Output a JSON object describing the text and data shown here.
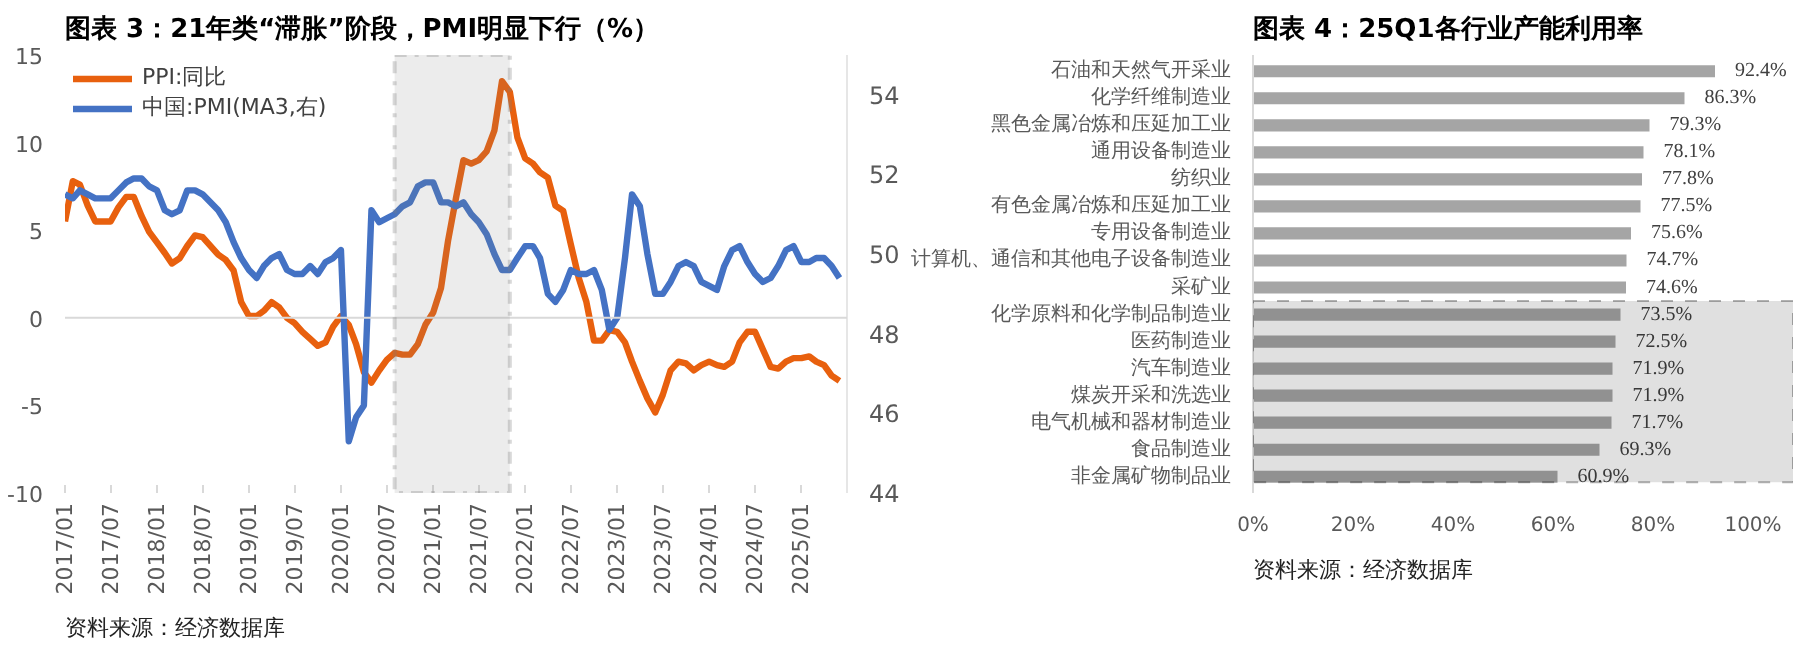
{
  "chart_data": [
    {
      "type": "line",
      "title": "图表 3：21年类“滞胀”阶段，PMI明显下行（%）",
      "annotations": [
        "资料来源：经济数据库"
      ],
      "x": [
        "2017-01",
        "2017-02",
        "2017-03",
        "2017-04",
        "2017-05",
        "2017-06",
        "2017-07",
        "2017-08",
        "2017-09",
        "2017-10",
        "2017-11",
        "2017-12",
        "2018-01",
        "2018-02",
        "2018-03",
        "2018-04",
        "2018-05",
        "2018-06",
        "2018-07",
        "2018-08",
        "2018-09",
        "2018-10",
        "2018-11",
        "2018-12",
        "2019-01",
        "2019-02",
        "2019-03",
        "2019-04",
        "2019-05",
        "2019-06",
        "2019-07",
        "2019-08",
        "2019-09",
        "2019-10",
        "2019-11",
        "2019-12",
        "2020-01",
        "2020-02",
        "2020-03",
        "2020-04",
        "2020-05",
        "2020-06",
        "2020-07",
        "2020-08",
        "2020-09",
        "2020-10",
        "2020-11",
        "2020-12",
        "2021-01",
        "2021-02",
        "2021-03",
        "2021-04",
        "2021-05",
        "2021-06",
        "2021-07",
        "2021-08",
        "2021-09",
        "2021-10",
        "2021-11",
        "2021-12",
        "2022-01",
        "2022-02",
        "2022-03",
        "2022-04",
        "2022-05",
        "2022-06",
        "2022-07",
        "2022-08",
        "2022-09",
        "2022-10",
        "2022-11",
        "2022-12",
        "2023-01",
        "2023-02",
        "2023-03",
        "2023-04",
        "2023-05",
        "2023-06",
        "2023-07",
        "2023-08",
        "2023-09",
        "2023-10",
        "2023-11",
        "2023-12",
        "2024-01",
        "2024-02",
        "2024-03",
        "2024-04",
        "2024-05",
        "2024-06",
        "2024-07",
        "2024-08",
        "2024-09",
        "2024-10",
        "2024-11",
        "2024-12",
        "2025-01",
        "2025-02",
        "2025-03",
        "2025-04",
        "2025-05",
        "2025-06"
      ],
      "series": [
        {
          "name": "PPI:同比",
          "color": "#e8600e",
          "values": [
            5.5,
            7.8,
            7.6,
            6.4,
            5.5,
            5.5,
            5.5,
            6.3,
            6.9,
            6.9,
            5.8,
            4.9,
            4.3,
            3.7,
            3.1,
            3.4,
            4.1,
            4.7,
            4.6,
            4.1,
            3.6,
            3.3,
            2.7,
            0.9,
            0.1,
            0.1,
            0.4,
            0.9,
            0.6,
            0.0,
            -0.3,
            -0.8,
            -1.2,
            -1.6,
            -1.4,
            -0.5,
            0.1,
            -0.4,
            -1.5,
            -3.1,
            -3.7,
            -3.0,
            -2.4,
            -2.0,
            -2.1,
            -2.1,
            -1.5,
            -0.4,
            0.3,
            1.7,
            4.4,
            6.8,
            9.0,
            8.8,
            9.0,
            9.5,
            10.7,
            13.5,
            12.9,
            10.3,
            9.1,
            8.8,
            8.3,
            8.0,
            6.4,
            6.1,
            4.2,
            2.3,
            0.9,
            -1.3,
            -1.3,
            -0.7,
            -0.8,
            -1.4,
            -2.5,
            -3.6,
            -4.6,
            -5.4,
            -4.4,
            -3.0,
            -2.5,
            -2.6,
            -3.0,
            -2.7,
            -2.5,
            -2.7,
            -2.8,
            -2.5,
            -1.4,
            -0.8,
            -0.8,
            -1.8,
            -2.8,
            -2.9,
            -2.5,
            -2.3,
            -2.3,
            -2.2,
            -2.5,
            -2.7,
            -3.3,
            -3.6
          ]
        },
        {
          "name": "中国:PMI(MA3,右)",
          "color": "#4472c4",
          "axis": "y2",
          "values": [
            51.5,
            51.4,
            51.6,
            51.5,
            51.4,
            51.4,
            51.4,
            51.6,
            51.8,
            51.9,
            51.9,
            51.7,
            51.6,
            51.1,
            51.0,
            51.1,
            51.6,
            51.6,
            51.5,
            51.3,
            51.1,
            50.8,
            50.3,
            49.9,
            49.6,
            49.4,
            49.7,
            49.9,
            50.0,
            49.6,
            49.5,
            49.5,
            49.7,
            49.5,
            49.8,
            49.9,
            50.1,
            45.3,
            45.9,
            46.2,
            51.1,
            50.8,
            50.9,
            51.0,
            51.2,
            51.3,
            51.7,
            51.8,
            51.8,
            51.3,
            51.3,
            51.2,
            51.3,
            51.0,
            50.8,
            50.5,
            50.0,
            49.6,
            49.6,
            49.9,
            50.2,
            50.2,
            49.9,
            49.0,
            48.8,
            49.1,
            49.6,
            49.5,
            49.5,
            49.6,
            49.1,
            48.1,
            48.4,
            49.9,
            51.5,
            51.2,
            50.0,
            49.0,
            49.0,
            49.3,
            49.7,
            49.8,
            49.7,
            49.3,
            49.2,
            49.1,
            49.7,
            50.1,
            50.2,
            49.8,
            49.5,
            49.3,
            49.4,
            49.7,
            50.1,
            50.2,
            49.8,
            49.8,
            49.9,
            49.9,
            49.7,
            49.4
          ]
        }
      ],
      "xlim": [
        "2017-01",
        "2025-07"
      ],
      "xticks": [
        {
          "value": "2017-01",
          "label": "2017/01"
        },
        {
          "value": "2017-07",
          "label": "2017/07"
        },
        {
          "value": "2018-01",
          "label": "2018/01"
        },
        {
          "value": "2018-07",
          "label": "2018/07"
        },
        {
          "value": "2019-01",
          "label": "2019/01"
        },
        {
          "value": "2019-07",
          "label": "2019/07"
        },
        {
          "value": "2020-01",
          "label": "2020/01"
        },
        {
          "value": "2020-07",
          "label": "2020/07"
        },
        {
          "value": "2021-01",
          "label": "2021/01"
        },
        {
          "value": "2021-07",
          "label": "2021/07"
        },
        {
          "value": "2022-01",
          "label": "2022/01"
        },
        {
          "value": "2022-07",
          "label": "2022/07"
        },
        {
          "value": "2023-01",
          "label": "2023/01"
        },
        {
          "value": "2023-07",
          "label": "2023/07"
        },
        {
          "value": "2024-01",
          "label": "2024/01"
        },
        {
          "value": "2024-07",
          "label": "2024/07"
        },
        {
          "value": "2025-01",
          "label": "2025/01"
        }
      ],
      "ylim": [
        -10,
        15
      ],
      "yticks": [
        -10,
        -5,
        0,
        5,
        10,
        15
      ],
      "y2lim": [
        44,
        55
      ],
      "y2ticks": [
        44,
        46,
        48,
        50,
        52,
        54
      ],
      "ref_lines": [
        {
          "axis": "y",
          "value": 0,
          "color": "#d9d9d9"
        }
      ],
      "bands": [
        {
          "axis": "x",
          "from": "2020-08",
          "to": "2021-11",
          "color": "#7f7f7f"
        }
      ],
      "grid": false,
      "legend": "top",
      "marker": "none",
      "line_style": "solid"
    },
    {
      "type": "bar",
      "orientation": "horizontal",
      "title": "图表 4：25Q1各行业产能利用率",
      "annotations": [
        "资料来源：经济数据库"
      ],
      "categories": [
        "石油和天然气开采业",
        "化学纤维制造业",
        "黑色金属冶炼和压延加工业",
        "通用设备制造业",
        "纺织业",
        "有色金属冶炼和压延加工业",
        "专用设备制造业",
        "计算机、通信和其他电子设备制造业",
        "采矿业",
        "化学原料和化学制品制造业",
        "医药制造业",
        "汽车制造业",
        "煤炭开采和洗选业",
        "电气机械和器材制造业",
        "食品制造业",
        "非金属矿物制品业"
      ],
      "values": [
        92.4,
        86.3,
        79.3,
        78.1,
        77.8,
        77.5,
        75.6,
        74.7,
        74.6,
        73.5,
        72.5,
        71.9,
        71.9,
        71.7,
        69.3,
        60.9
      ],
      "value_labels": [
        "92.4%",
        "86.3%",
        "79.3%",
        "78.1%",
        "77.8%",
        "77.5%",
        "75.6%",
        "74.7%",
        "74.6%",
        "73.5%",
        "72.5%",
        "71.9%",
        "71.9%",
        "71.7%",
        "69.3%",
        "60.9%"
      ],
      "color": "#a5a5a5",
      "xlim": [
        0,
        108
      ],
      "xticks": [
        {
          "value": 0,
          "label": "0%"
        },
        {
          "value": 20,
          "label": "20%"
        },
        {
          "value": 40,
          "label": "40%"
        },
        {
          "value": 60,
          "label": "60%"
        },
        {
          "value": 80,
          "label": "80%"
        },
        {
          "value": 100,
          "label": "100%"
        }
      ],
      "bands": [
        {
          "axis": "y",
          "from": "化学原料和化学制品制造业",
          "to": "非金属矿物制品业",
          "color": "#000000"
        }
      ],
      "grid": false,
      "legend": false
    }
  ]
}
